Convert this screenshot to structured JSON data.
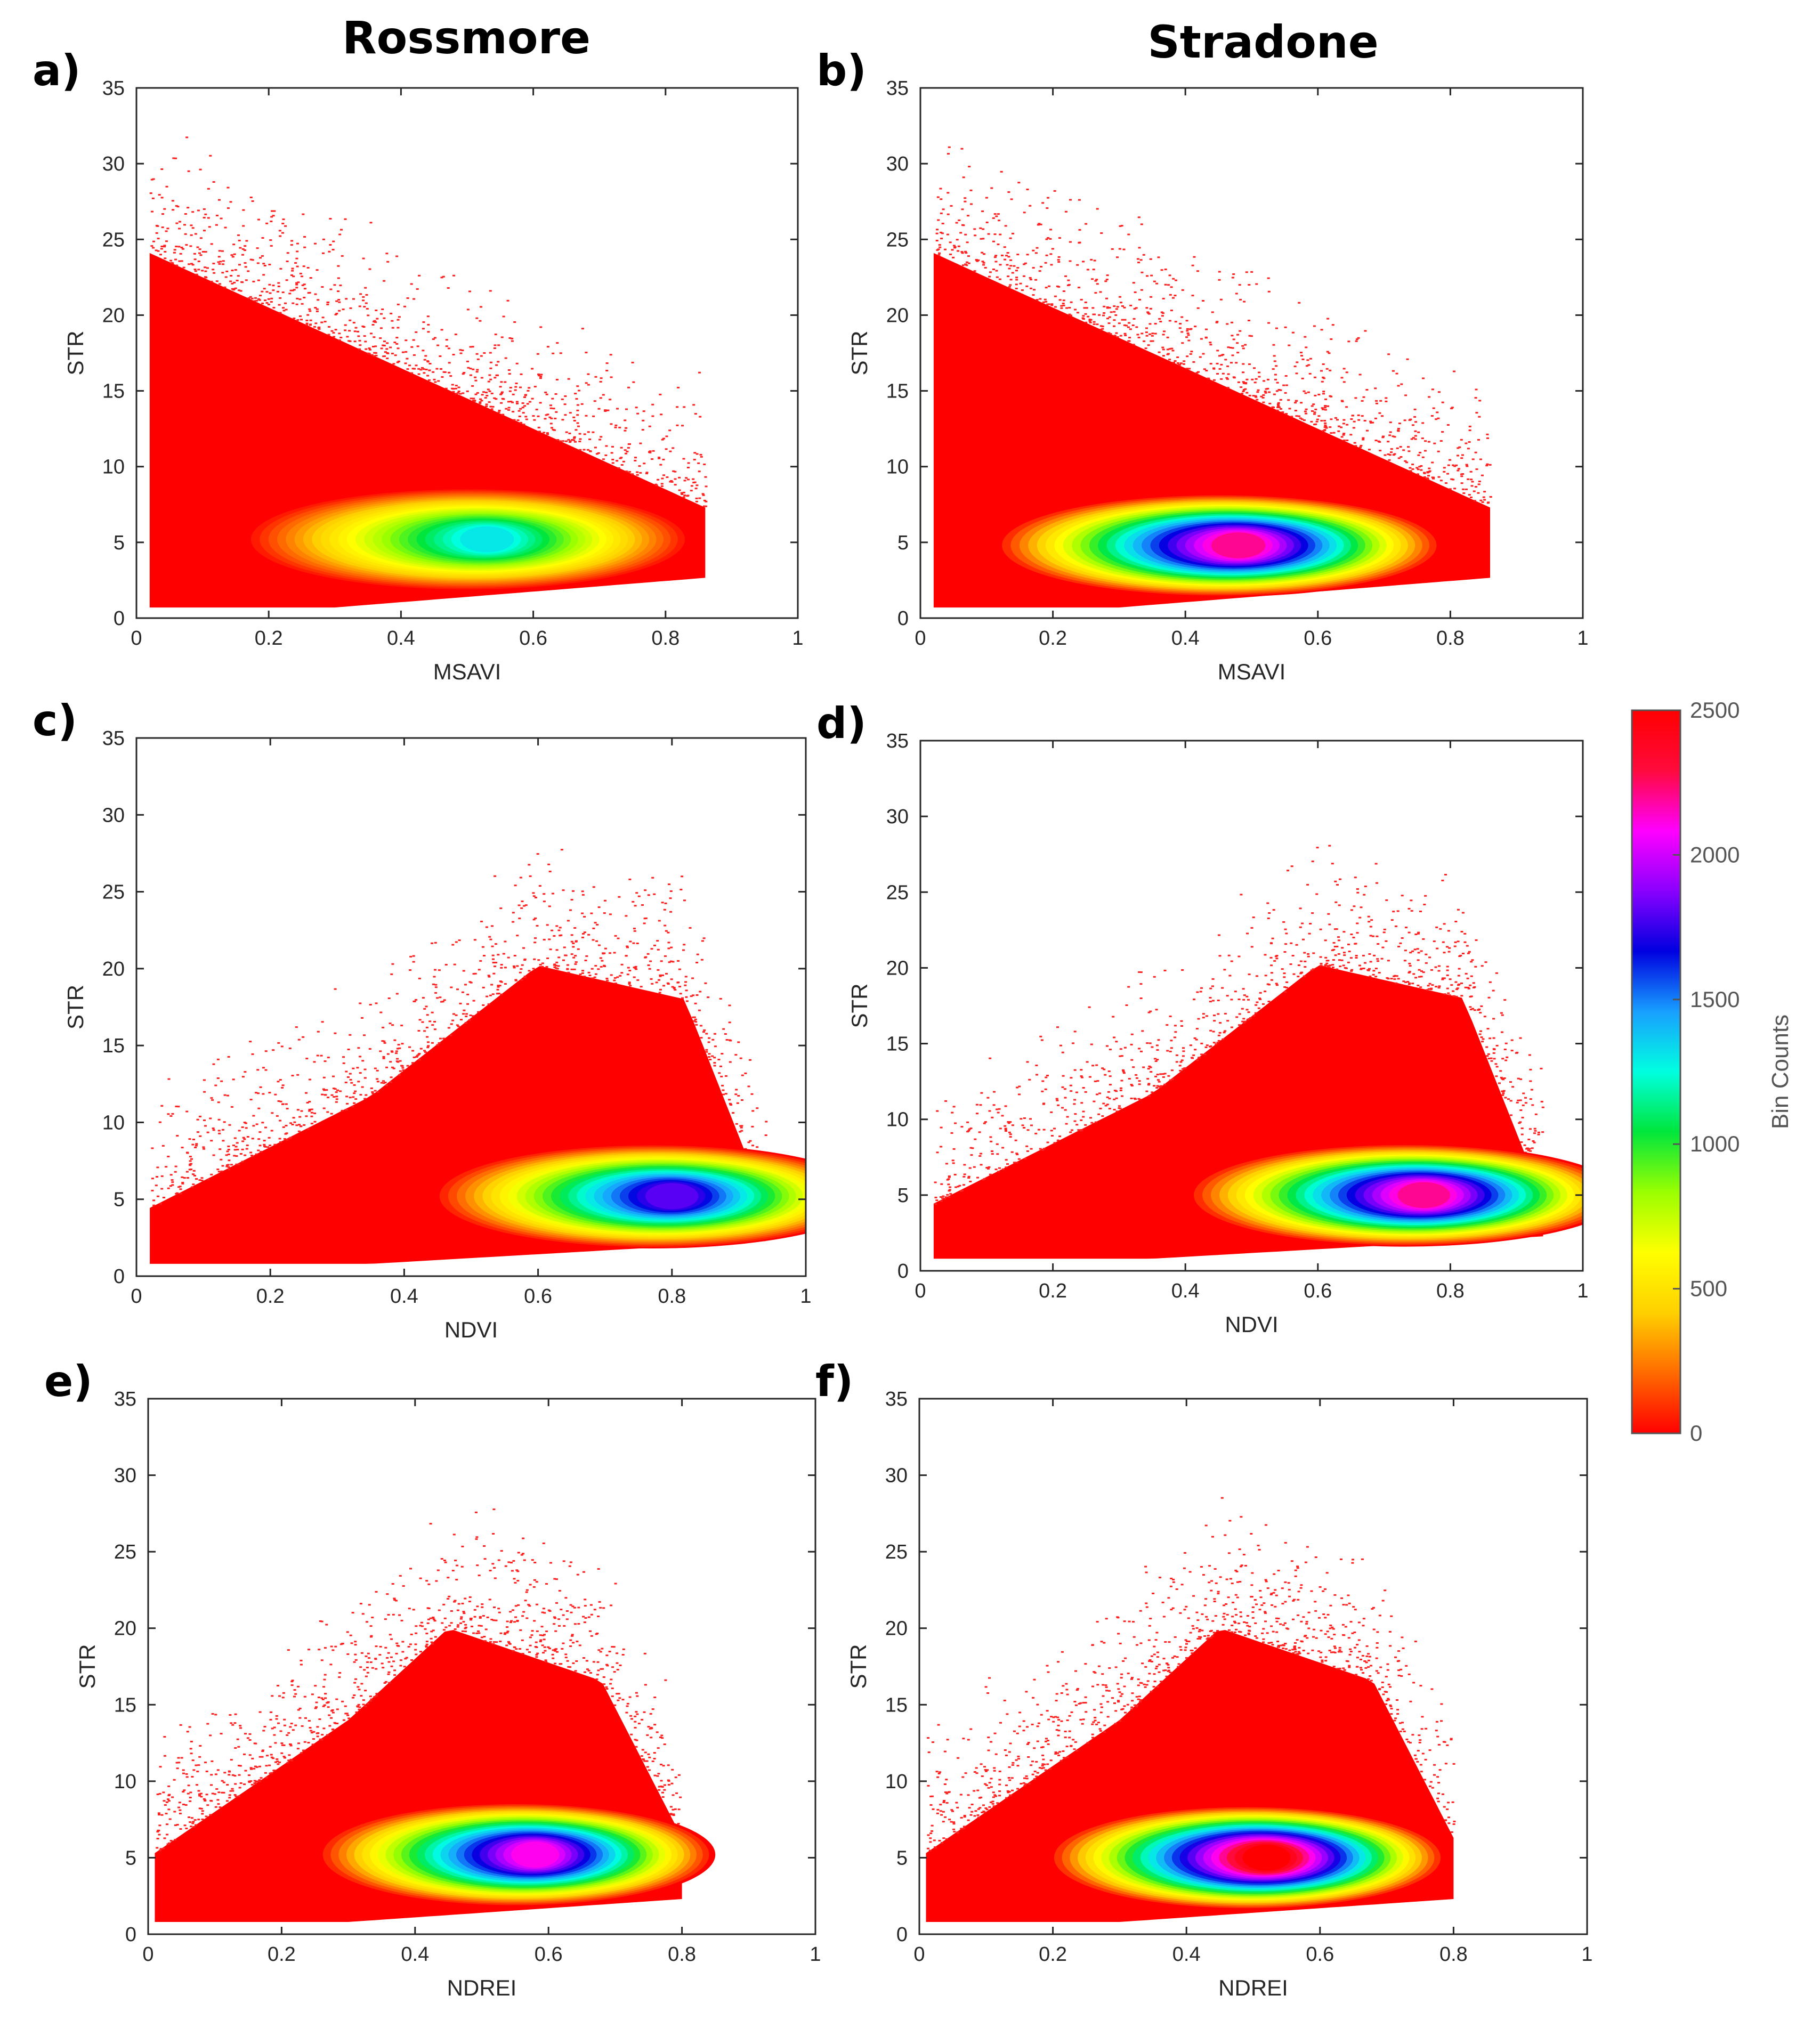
{
  "colors": {
    "colormap": [
      "#ff0000",
      "#ff6a00",
      "#ffd000",
      "#ffff00",
      "#9bff00",
      "#00e63c",
      "#00ffe0",
      "#18a0ff",
      "#0000e0",
      "#8a00ff",
      "#ff00ff",
      "#ff0a3c",
      "#ff0000"
    ],
    "axis": "#262626",
    "background": "#ffffff"
  },
  "figure": {
    "column_titles": [
      "Rossmore",
      "Stradone"
    ]
  },
  "colorbar": {
    "label": "Bin Counts",
    "ticks": [
      "0",
      "500",
      "1000",
      "1500",
      "2000",
      "2500"
    ],
    "range": [
      0,
      2500
    ]
  },
  "chart_data": [
    {
      "panel": "a)",
      "site": "Rossmore",
      "type": "heatmap",
      "xlabel": "MSAVI",
      "ylabel": "STR",
      "xlim": [
        0,
        1
      ],
      "ylim": [
        0,
        35
      ],
      "xticks": [
        "0",
        "0.2",
        "0.4",
        "0.6",
        "0.8",
        "1"
      ],
      "yticks": [
        "0",
        "5",
        "10",
        "15",
        "20",
        "25",
        "30",
        "35"
      ],
      "shape": "msavi",
      "peak_x": 0.53,
      "peak_y": 5.2,
      "peak_count": 1300
    },
    {
      "panel": "b)",
      "site": "Stradone",
      "type": "heatmap",
      "xlabel": "MSAVI",
      "ylabel": "STR",
      "xlim": [
        0,
        1
      ],
      "ylim": [
        0,
        35
      ],
      "xticks": [
        "0",
        "0.2",
        "0.4",
        "0.6",
        "0.8",
        "1"
      ],
      "yticks": [
        "0",
        "5",
        "10",
        "15",
        "20",
        "25",
        "30",
        "35"
      ],
      "shape": "msavi",
      "peak_x": 0.48,
      "peak_y": 4.8,
      "peak_count": 2200
    },
    {
      "panel": "c)",
      "site": "Rossmore",
      "type": "heatmap",
      "xlabel": "NDVI",
      "ylabel": "STR",
      "xlim": [
        0,
        1
      ],
      "ylim": [
        0,
        35
      ],
      "xticks": [
        "0",
        "0.2",
        "0.4",
        "0.6",
        "0.8",
        "1"
      ],
      "yticks": [
        "0",
        "5",
        "10",
        "15",
        "20",
        "25",
        "30",
        "35"
      ],
      "shape": "ndvi",
      "peak_x": 0.8,
      "peak_y": 5.2,
      "peak_count": 1800
    },
    {
      "panel": "d)",
      "site": "Stradone",
      "type": "heatmap",
      "xlabel": "NDVI",
      "ylabel": "STR",
      "xlim": [
        0,
        1
      ],
      "ylim": [
        0,
        35
      ],
      "xticks": [
        "0",
        "0.2",
        "0.4",
        "0.6",
        "0.8",
        "1"
      ],
      "yticks": [
        "0",
        "5",
        "10",
        "15",
        "20",
        "25",
        "30",
        "35"
      ],
      "shape": "ndvi",
      "peak_x": 0.76,
      "peak_y": 5.0,
      "peak_count": 2200
    },
    {
      "panel": "e)",
      "site": "Rossmore",
      "type": "heatmap",
      "xlabel": "NDREI",
      "ylabel": "STR",
      "xlim": [
        0,
        1
      ],
      "ylim": [
        0,
        35
      ],
      "xticks": [
        "0",
        "0.2",
        "0.4",
        "0.6",
        "0.8",
        "1"
      ],
      "yticks": [
        "0",
        "5",
        "10",
        "15",
        "20",
        "25",
        "30",
        "35"
      ],
      "shape": "ndrei",
      "peak_x": 0.58,
      "peak_y": 5.2,
      "peak_count": 2100
    },
    {
      "panel": "f)",
      "site": "Stradone",
      "type": "heatmap",
      "xlabel": "NDREI",
      "ylabel": "STR",
      "xlim": [
        0,
        1
      ],
      "ylim": [
        0,
        35
      ],
      "xticks": [
        "0",
        "0.2",
        "0.4",
        "0.6",
        "0.8",
        "1"
      ],
      "yticks": [
        "0",
        "5",
        "10",
        "15",
        "20",
        "25",
        "30",
        "35"
      ],
      "shape": "ndrei",
      "peak_x": 0.52,
      "peak_y": 5.0,
      "peak_count": 2500
    }
  ]
}
